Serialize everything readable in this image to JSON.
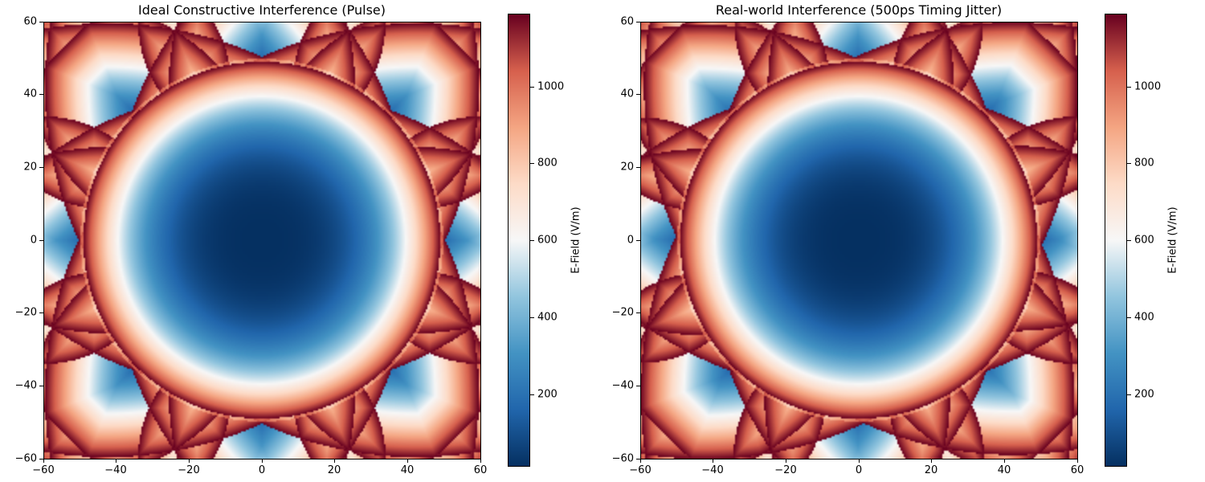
{
  "chart_data": [
    {
      "type": "heatmap",
      "title": "Ideal Constructive Interference (Pulse)",
      "xlabel": "",
      "ylabel": "",
      "xlim": [
        -60,
        60
      ],
      "ylim": [
        -60,
        60
      ],
      "xticks": [
        "−60",
        "−40",
        "−20",
        "0",
        "20",
        "40",
        "60"
      ],
      "yticks": [
        "60",
        "40",
        "20",
        "0",
        "−20",
        "−40",
        "−60"
      ],
      "colorbar": {
        "label": "E-Field (V/m)",
        "range": [
          20,
          1180
        ],
        "ticks": [
          "1000",
          "800",
          "600",
          "400",
          "200"
        ],
        "colormap": "RdBu_r"
      },
      "pattern": {
        "sources": 8,
        "source_radius": 60,
        "max_field": 1180,
        "min_field": 20,
        "main_ring_radius": 49,
        "jitter_ps": 0
      }
    },
    {
      "type": "heatmap",
      "title": "Real-world Interference (500ps Timing Jitter)",
      "xlabel": "",
      "ylabel": "",
      "xlim": [
        -60,
        60
      ],
      "ylim": [
        -60,
        60
      ],
      "xticks": [
        "−60",
        "−40",
        "−20",
        "0",
        "20",
        "40",
        "60"
      ],
      "yticks": [
        "60",
        "40",
        "20",
        "0",
        "−20",
        "−40",
        "−60"
      ],
      "colorbar": {
        "label": "E-Field (V/m)",
        "range": [
          20,
          1180
        ],
        "ticks": [
          "1000",
          "800",
          "600",
          "400",
          "200"
        ],
        "colormap": "RdBu_r"
      },
      "pattern": {
        "sources": 8,
        "source_radius": 60,
        "max_field": 1180,
        "min_field": 20,
        "main_ring_radius": 49,
        "jitter_ps": 500
      }
    }
  ]
}
